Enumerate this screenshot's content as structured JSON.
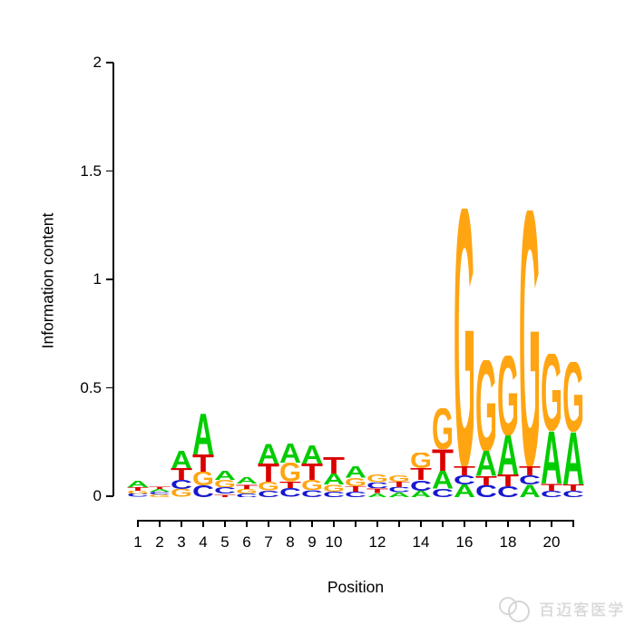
{
  "chart": {
    "ylabel": "Information content",
    "xlabel": "Position"
  },
  "watermark": {
    "brand": "百迈客医学"
  },
  "chart_data": {
    "type": "sequence_logo",
    "title": "",
    "xlabel": "Position",
    "ylabel": "Information content",
    "ylim": [
      0,
      2
    ],
    "yticks": [
      0,
      0.5,
      1,
      1.5,
      2
    ],
    "ytick_labels": [
      "0",
      "0.5",
      "1",
      "1.5",
      "2"
    ],
    "n_positions": 21,
    "xtick_labels": [
      "1",
      "2",
      "3",
      "4",
      "5",
      "6",
      "7",
      "8",
      "9",
      "10",
      "",
      "12",
      "",
      "14",
      "",
      "16",
      "",
      "18",
      "",
      "20",
      ""
    ],
    "legend": "none",
    "grid": false,
    "colors": {
      "A": "#00CC00",
      "C": "#1717CE",
      "G": "#FFA512",
      "T": "#DB0000"
    },
    "positions": [
      {
        "pos": 1,
        "stack": [
          [
            "A",
            0.03
          ],
          [
            "T",
            0.016
          ],
          [
            "G",
            0.015
          ],
          [
            "C",
            0.015
          ]
        ]
      },
      {
        "pos": 2,
        "stack": [
          [
            "T",
            0.014
          ],
          [
            "A",
            0.013
          ],
          [
            "C",
            0.012
          ],
          [
            "G",
            0.012
          ]
        ]
      },
      {
        "pos": 3,
        "stack": [
          [
            "A",
            0.083
          ],
          [
            "T",
            0.054
          ],
          [
            "C",
            0.042
          ],
          [
            "G",
            0.036
          ]
        ]
      },
      {
        "pos": 4,
        "stack": [
          [
            "A",
            0.188
          ],
          [
            "T",
            0.079
          ],
          [
            "G",
            0.063
          ],
          [
            "C",
            0.054
          ]
        ]
      },
      {
        "pos": 5,
        "stack": [
          [
            "A",
            0.042
          ],
          [
            "G",
            0.035
          ],
          [
            "C",
            0.03
          ],
          [
            "T",
            0.014
          ]
        ]
      },
      {
        "pos": 6,
        "stack": [
          [
            "A",
            0.03
          ],
          [
            "T",
            0.022
          ],
          [
            "G",
            0.02
          ],
          [
            "C",
            0.018
          ]
        ]
      },
      {
        "pos": 7,
        "stack": [
          [
            "A",
            0.092
          ],
          [
            "T",
            0.083
          ],
          [
            "G",
            0.04
          ],
          [
            "C",
            0.03
          ]
        ]
      },
      {
        "pos": 8,
        "stack": [
          [
            "A",
            0.088
          ],
          [
            "G",
            0.086
          ],
          [
            "T",
            0.032
          ],
          [
            "C",
            0.04
          ]
        ]
      },
      {
        "pos": 9,
        "stack": [
          [
            "A",
            0.083
          ],
          [
            "T",
            0.075
          ],
          [
            "G",
            0.048
          ],
          [
            "C",
            0.033
          ]
        ]
      },
      {
        "pos": 10,
        "stack": [
          [
            "T",
            0.075
          ],
          [
            "A",
            0.05
          ],
          [
            "G",
            0.033
          ],
          [
            "C",
            0.025
          ]
        ]
      },
      {
        "pos": 11,
        "stack": [
          [
            "A",
            0.052
          ],
          [
            "G",
            0.038
          ],
          [
            "T",
            0.026
          ],
          [
            "C",
            0.025
          ]
        ]
      },
      {
        "pos": 12,
        "stack": [
          [
            "G",
            0.035
          ],
          [
            "C",
            0.028
          ],
          [
            "T",
            0.022
          ],
          [
            "A",
            0.018
          ]
        ]
      },
      {
        "pos": 13,
        "stack": [
          [
            "G",
            0.03
          ],
          [
            "T",
            0.026
          ],
          [
            "C",
            0.024
          ],
          [
            "A",
            0.02
          ]
        ]
      },
      {
        "pos": 14,
        "stack": [
          [
            "G",
            0.071
          ],
          [
            "T",
            0.055
          ],
          [
            "C",
            0.046
          ],
          [
            "A",
            0.031
          ]
        ]
      },
      {
        "pos": 15,
        "stack": [
          [
            "G",
            0.19
          ],
          [
            "T",
            0.1
          ],
          [
            "A",
            0.082
          ],
          [
            "C",
            0.038
          ]
        ]
      },
      {
        "pos": 16,
        "stack": [
          [
            "G",
            1.19
          ],
          [
            "T",
            0.042
          ],
          [
            "C",
            0.042
          ],
          [
            "A",
            0.058
          ]
        ]
      },
      {
        "pos": 17,
        "stack": [
          [
            "G",
            0.42
          ],
          [
            "A",
            0.115
          ],
          [
            "T",
            0.042
          ],
          [
            "C",
            0.055
          ]
        ]
      },
      {
        "pos": 18,
        "stack": [
          [
            "G",
            0.368
          ],
          [
            "A",
            0.18
          ],
          [
            "T",
            0.054
          ],
          [
            "C",
            0.05
          ]
        ]
      },
      {
        "pos": 19,
        "stack": [
          [
            "G",
            1.18
          ],
          [
            "T",
            0.042
          ],
          [
            "C",
            0.042
          ],
          [
            "A",
            0.06
          ]
        ]
      },
      {
        "pos": 20,
        "stack": [
          [
            "G",
            0.354
          ],
          [
            "A",
            0.242
          ],
          [
            "T",
            0.033
          ],
          [
            "C",
            0.03
          ]
        ]
      },
      {
        "pos": 21,
        "stack": [
          [
            "G",
            0.32
          ],
          [
            "A",
            0.242
          ],
          [
            "T",
            0.03
          ],
          [
            "C",
            0.03
          ]
        ]
      }
    ]
  }
}
